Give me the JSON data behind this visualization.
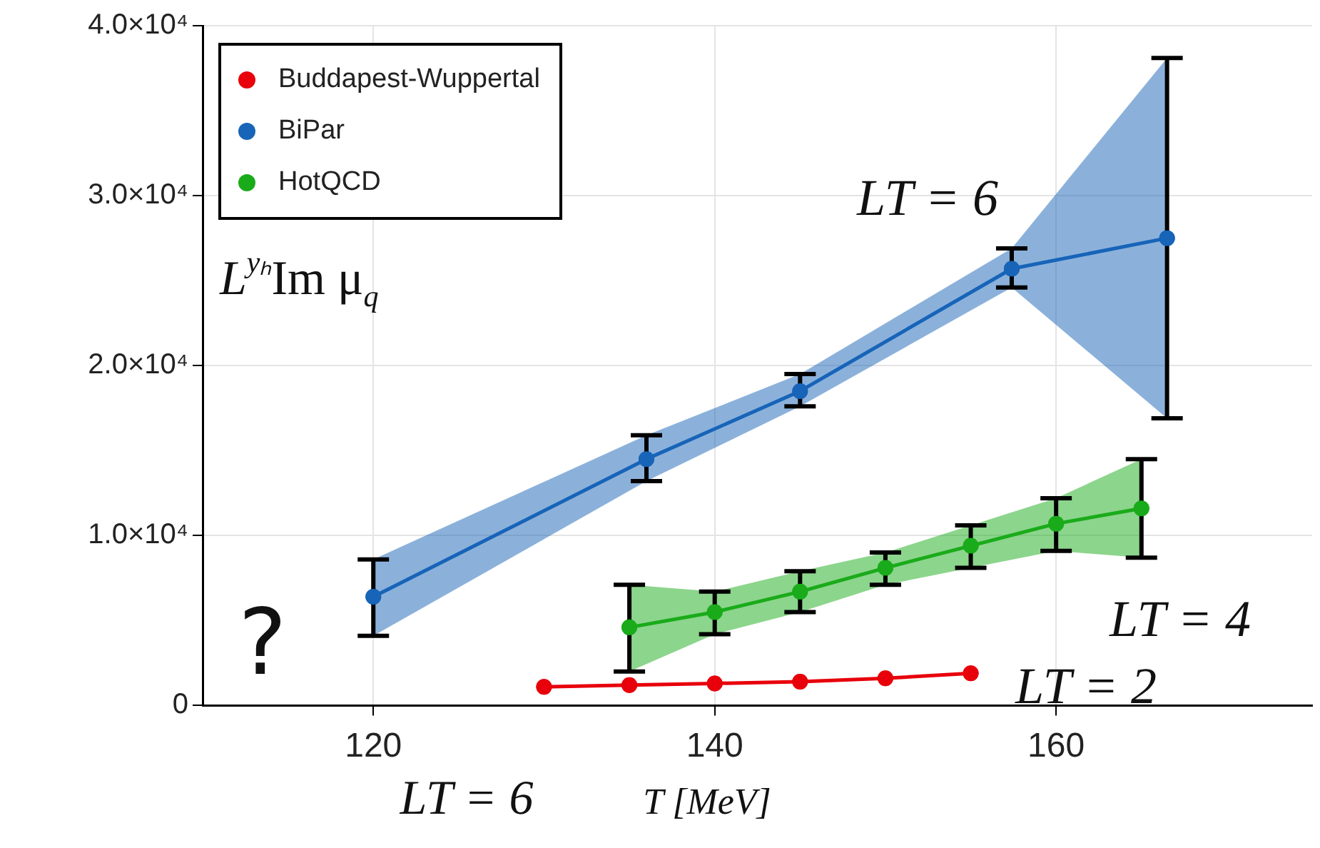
{
  "chart_data": {
    "type": "line",
    "xlabel": "T [MeV]",
    "ylabel": "L$^{yₕ}$Im μ$_{q}$",
    "xlim": [
      110,
      175
    ],
    "xticks": [
      120,
      140,
      160
    ],
    "ylim": [
      0,
      40000
    ],
    "yticks": [
      0,
      {
        "value": 10000,
        "label": "1.0×10⁴"
      },
      {
        "value": 20000,
        "label": "2.0×10⁴"
      },
      {
        "value": 30000,
        "label": "3.0×10⁴"
      },
      {
        "value": 40000,
        "label": "4.0×10⁴"
      }
    ],
    "grid": true,
    "legend": "top left",
    "marker": "circle",
    "line_style": "solid",
    "series": [
      {
        "name": "Buddapest-Wuppertal",
        "color": "#e8000b",
        "x": [
          130,
          135,
          140,
          145,
          150,
          155
        ],
        "values": [
          1100,
          1200,
          1300,
          1400,
          1600,
          1900
        ]
      },
      {
        "name": "BiPar",
        "color": "#1764b8",
        "x": [
          120,
          136,
          145,
          157.4,
          166.5
        ],
        "values": [
          6400,
          14500,
          18500,
          25700,
          27500
        ],
        "errors": [
          [
            4100,
            8600
          ],
          [
            13200,
            15900
          ],
          [
            17600,
            19500
          ],
          [
            24600,
            26900
          ],
          [
            16900,
            38100
          ]
        ],
        "lower": [
          4100,
          13200,
          17600,
          24600,
          16900
        ],
        "upper": [
          8600,
          15900,
          19500,
          26900,
          38100
        ]
      },
      {
        "name": "HotQCD",
        "color": "#1aab1a",
        "x": [
          135,
          140,
          145,
          150,
          155,
          160,
          165
        ],
        "values": [
          4600,
          5500,
          6700,
          8100,
          9400,
          10700,
          11600
        ],
        "errors": [
          [
            2000,
            7100
          ],
          [
            4200,
            6700
          ],
          [
            5500,
            7900
          ],
          [
            7100,
            9000
          ],
          [
            8100,
            10600
          ],
          [
            9100,
            12200
          ],
          [
            8700,
            14500
          ]
        ],
        "lower": [
          2000,
          4200,
          5500,
          7100,
          8100,
          9100,
          8700
        ],
        "upper": [
          7100,
          6700,
          7900,
          9000,
          10600,
          12200,
          14500
        ]
      }
    ],
    "annotations": [
      "LT = 6",
      "LT = 4",
      "LT = 2",
      "?",
      "LT = 6"
    ]
  }
}
